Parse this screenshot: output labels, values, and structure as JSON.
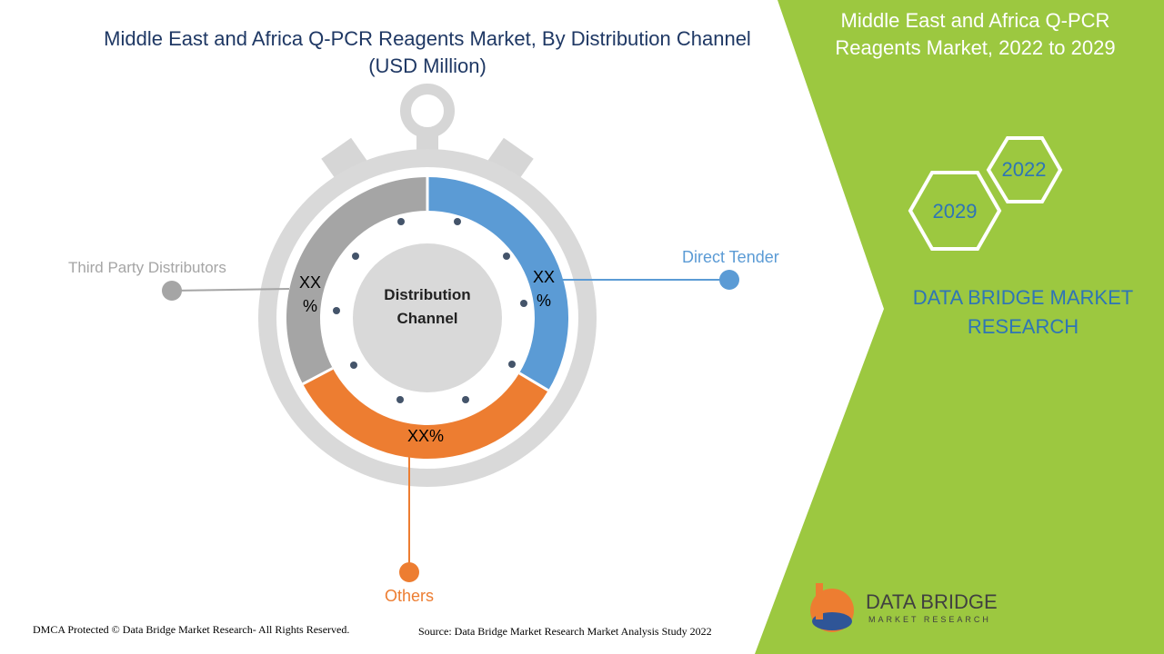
{
  "header": {
    "title": "Middle East and Africa Q-PCR Reagents Market, By Distribution Channel",
    "subtitle": "(USD Million)"
  },
  "dial": {
    "center_label": "Distribution Channel",
    "segments": [
      {
        "label": "Direct Tender",
        "value_label": "XX %"
      },
      {
        "label": "Others",
        "value_label": "XX%"
      },
      {
        "label": "Third Party Distributors",
        "value_label": "XX %"
      }
    ]
  },
  "side_panel": {
    "title": "Middle East and Africa Q-PCR Reagents Market, 2022 to 2029",
    "years": [
      "2022",
      "2029"
    ],
    "brand": "DATA BRIDGE MARKET RESEARCH"
  },
  "logo": {
    "name": "DATA BRIDGE",
    "tagline": "MARKET RESEARCH"
  },
  "footer": {
    "copyright": "DMCA Protected © Data Bridge Market Research- All Rights Reserved.",
    "source": "Source: Data Bridge Market Research Market Analysis Study 2022"
  }
}
